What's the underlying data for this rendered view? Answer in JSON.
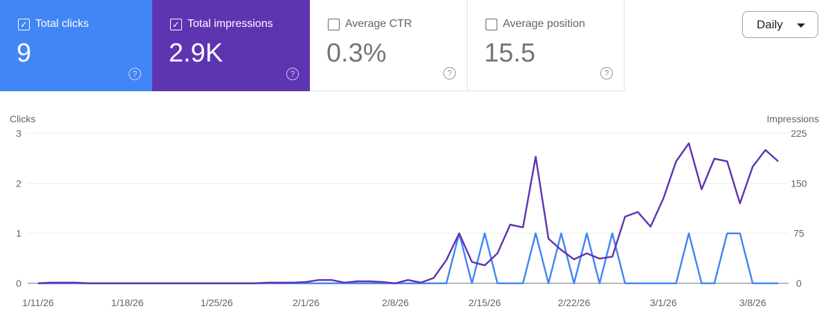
{
  "metrics": [
    {
      "label": "Total clicks",
      "value": "9",
      "checked": true,
      "color": "#4285f4"
    },
    {
      "label": "Total impressions",
      "value": "2.9K",
      "checked": true,
      "color": "#5e35b1"
    },
    {
      "label": "Average CTR",
      "value": "0.3%",
      "checked": false
    },
    {
      "label": "Average position",
      "value": "15.5",
      "checked": false
    }
  ],
  "help_icon": "?",
  "check_mark": "✓",
  "range_select": {
    "value": "Daily"
  },
  "chart_data": {
    "type": "line",
    "left_axis_label": "Clicks",
    "right_axis_label": "Impressions",
    "left_ylim": [
      0,
      3
    ],
    "left_ticks": [
      "0",
      "1",
      "2",
      "3"
    ],
    "right_ylim": [
      0,
      225
    ],
    "right_ticks": [
      "0",
      "75",
      "150",
      "225"
    ],
    "x_ticks": [
      "1/11/26",
      "1/18/26",
      "1/25/26",
      "2/1/26",
      "2/8/26",
      "2/15/26",
      "2/22/26",
      "3/1/26",
      "3/8/26"
    ],
    "x_range": [
      "1/11/26",
      "3/10/26"
    ],
    "grid": true,
    "series": [
      {
        "name": "Clicks",
        "axis": "left",
        "color": "#4285f4",
        "values": [
          0,
          0,
          0,
          0,
          0,
          0,
          0,
          0,
          0,
          0,
          0,
          0,
          0,
          0,
          0,
          0,
          0,
          0,
          0,
          0,
          0,
          0,
          0,
          0,
          0,
          0,
          0,
          0,
          0,
          0,
          0,
          0,
          0,
          1,
          0,
          1,
          0,
          0,
          0,
          1,
          0,
          1,
          0,
          1,
          0,
          1,
          0,
          0,
          0,
          0,
          0,
          1,
          0,
          0,
          1,
          1,
          0,
          0,
          0
        ]
      },
      {
        "name": "Impressions",
        "axis": "right",
        "color": "#5e35b1",
        "values": [
          0,
          1,
          1,
          1,
          0,
          0,
          0,
          0,
          0,
          0,
          0,
          0,
          0,
          0,
          0,
          0,
          0,
          0,
          1,
          1,
          1,
          2,
          5,
          5,
          1,
          3,
          3,
          2,
          0,
          5,
          1,
          8,
          35,
          75,
          32,
          27,
          45,
          88,
          84,
          190,
          67,
          50,
          36,
          45,
          37,
          40,
          100,
          107,
          85,
          127,
          183,
          210,
          141,
          187,
          183,
          120,
          175,
          200,
          183
        ]
      }
    ]
  }
}
